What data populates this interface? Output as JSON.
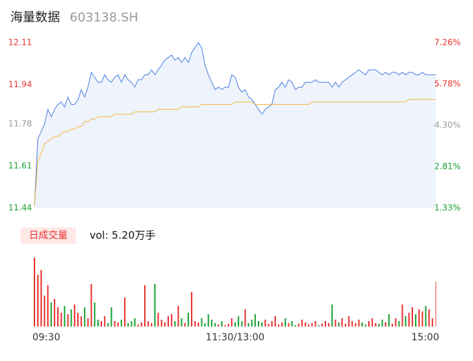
{
  "header": {
    "title": "海量数据",
    "code": "603138.SH"
  },
  "chart_data": [
    {
      "type": "line",
      "x": [
        0,
        2,
        4,
        6,
        8,
        10,
        12,
        14,
        16,
        18,
        20,
        22,
        24,
        26,
        28,
        30,
        32,
        34,
        36,
        38,
        40,
        42,
        44,
        46,
        48,
        50,
        52,
        54,
        56,
        58,
        60,
        62,
        64,
        66,
        68,
        70,
        72,
        74,
        76,
        78,
        80,
        82,
        84,
        86,
        88,
        90,
        92,
        94,
        96,
        98,
        100,
        102,
        104,
        106,
        108,
        110,
        112,
        114,
        116,
        118,
        120,
        122,
        124,
        126,
        128,
        130,
        132,
        134,
        136,
        138,
        140,
        142,
        144,
        146,
        148,
        150,
        152,
        154,
        156,
        158,
        160,
        162,
        164,
        166,
        168,
        170,
        172,
        174,
        176,
        178,
        180,
        182,
        184,
        186,
        188,
        190,
        192,
        194,
        196,
        198,
        200,
        202,
        204,
        206,
        208,
        210,
        212,
        214,
        216,
        218,
        220,
        222,
        224,
        226,
        228,
        230,
        232,
        234,
        236,
        238,
        240
      ],
      "series": [
        {
          "color": "#4a7fe0",
          "values": [
            11.45,
            11.72,
            11.75,
            11.78,
            11.84,
            11.81,
            11.84,
            11.86,
            11.87,
            11.85,
            11.89,
            11.86,
            11.86,
            11.88,
            11.92,
            11.89,
            11.93,
            11.99,
            11.97,
            11.95,
            11.95,
            11.98,
            11.96,
            11.95,
            11.97,
            11.98,
            11.95,
            11.98,
            11.96,
            11.95,
            11.93,
            11.96,
            11.96,
            11.98,
            11.98,
            12.0,
            11.98,
            12.0,
            12.02,
            12.04,
            12.05,
            12.06,
            12.04,
            12.05,
            12.03,
            12.05,
            12.03,
            12.07,
            12.09,
            12.11,
            12.09,
            12.02,
            11.98,
            11.95,
            11.92,
            11.93,
            11.92,
            11.93,
            11.93,
            11.98,
            11.97,
            11.93,
            11.91,
            11.92,
            11.89,
            11.88,
            11.86,
            11.84,
            11.82,
            11.84,
            11.85,
            11.86,
            11.92,
            11.93,
            11.95,
            11.93,
            11.96,
            11.95,
            11.92,
            11.93,
            11.93,
            11.95,
            11.95,
            11.95,
            11.96,
            11.95,
            11.95,
            11.95,
            11.95,
            11.93,
            11.95,
            11.93,
            11.95,
            11.96,
            11.97,
            11.98,
            11.99,
            12.0,
            11.99,
            11.98,
            12.0,
            12.0,
            12.0,
            11.99,
            11.98,
            11.99,
            11.98,
            11.99,
            11.99,
            11.98,
            11.99,
            11.98,
            11.99,
            11.99,
            11.98,
            11.98,
            11.99,
            11.98,
            11.98,
            11.98,
            11.98
          ]
        },
        {
          "color": "#f5b83d",
          "values": [
            11.45,
            11.63,
            11.66,
            11.7,
            11.71,
            11.72,
            11.73,
            11.73,
            11.74,
            11.75,
            11.75,
            11.76,
            11.76,
            11.77,
            11.77,
            11.79,
            11.79,
            11.8,
            11.8,
            11.81,
            11.81,
            11.81,
            11.81,
            11.81,
            11.82,
            11.82,
            11.82,
            11.82,
            11.82,
            11.82,
            11.83,
            11.83,
            11.83,
            11.83,
            11.83,
            11.83,
            11.83,
            11.84,
            11.84,
            11.84,
            11.84,
            11.84,
            11.84,
            11.84,
            11.85,
            11.85,
            11.85,
            11.85,
            11.85,
            11.85,
            11.86,
            11.86,
            11.86,
            11.86,
            11.86,
            11.86,
            11.86,
            11.86,
            11.86,
            11.86,
            11.87,
            11.87,
            11.87,
            11.87,
            11.87,
            11.87,
            11.86,
            11.86,
            11.86,
            11.86,
            11.86,
            11.86,
            11.86,
            11.86,
            11.86,
            11.86,
            11.86,
            11.86,
            11.86,
            11.86,
            11.86,
            11.86,
            11.86,
            11.87,
            11.87,
            11.87,
            11.87,
            11.87,
            11.87,
            11.87,
            11.87,
            11.87,
            11.87,
            11.87,
            11.87,
            11.87,
            11.87,
            11.87,
            11.87,
            11.87,
            11.87,
            11.87,
            11.87,
            11.87,
            11.87,
            11.87,
            11.87,
            11.87,
            11.87,
            11.87,
            11.87,
            11.87,
            11.88,
            11.88,
            11.88,
            11.88,
            11.88,
            11.88,
            11.88,
            11.88,
            11.88
          ]
        }
      ],
      "fill": "#eef3fc",
      "xlim": [
        0,
        240
      ],
      "xticks": [
        {
          "value": 0,
          "label": "09:30"
        },
        {
          "value": 120,
          "label": "11:30/13:00"
        },
        {
          "value": 240,
          "label": "15:00"
        }
      ],
      "ylim": [
        11.44,
        12.11
      ],
      "yticks": [
        12.11,
        11.94,
        11.78,
        11.61,
        11.44
      ],
      "ytick_colors": [
        "#e8312f",
        "#e8312f",
        "#999999",
        "#1aa033",
        "#1aa033"
      ],
      "y2lim": [
        1.33,
        7.26
      ],
      "y2ticks": [
        {
          "value": 7.26,
          "label": "7.26%"
        },
        {
          "value": 5.78,
          "label": "5.78%"
        },
        {
          "value": 4.3,
          "label": "4.30%"
        },
        {
          "value": 2.81,
          "label": "2.81%"
        },
        {
          "value": 1.33,
          "label": "1.33%"
        }
      ]
    },
    {
      "type": "bar",
      "legend_label": "日成交量",
      "annotation": "vol: 5.20万手",
      "x": [
        0,
        2,
        4,
        6,
        8,
        10,
        12,
        14,
        16,
        18,
        20,
        22,
        24,
        26,
        28,
        30,
        32,
        34,
        36,
        38,
        40,
        42,
        44,
        46,
        48,
        50,
        52,
        54,
        56,
        58,
        60,
        62,
        64,
        66,
        68,
        70,
        72,
        74,
        76,
        78,
        80,
        82,
        84,
        86,
        88,
        90,
        92,
        94,
        96,
        98,
        100,
        102,
        104,
        106,
        108,
        110,
        112,
        114,
        116,
        118,
        120,
        122,
        124,
        126,
        128,
        130,
        132,
        134,
        136,
        138,
        140,
        142,
        144,
        146,
        148,
        150,
        152,
        154,
        156,
        158,
        160,
        162,
        164,
        166,
        168,
        170,
        172,
        174,
        176,
        178,
        180,
        182,
        184,
        186,
        188,
        190,
        192,
        194,
        196,
        198,
        200,
        202,
        204,
        206,
        208,
        210,
        212,
        214,
        216,
        218,
        220,
        222,
        224,
        226,
        228,
        230,
        232,
        234,
        236,
        238,
        240
      ],
      "values": [
        100,
        75,
        82,
        45,
        60,
        35,
        40,
        28,
        20,
        30,
        18,
        25,
        32,
        20,
        15,
        28,
        12,
        62,
        35,
        10,
        8,
        15,
        5,
        28,
        8,
        6,
        10,
        42,
        5,
        8,
        12,
        3,
        6,
        60,
        8,
        5,
        62,
        20,
        10,
        6,
        15,
        18,
        8,
        30,
        12,
        5,
        20,
        50,
        8,
        6,
        12,
        5,
        18,
        10,
        5,
        3,
        8,
        2,
        4,
        12,
        6,
        15,
        8,
        25,
        5,
        10,
        18,
        8,
        6,
        10,
        4,
        8,
        15,
        3,
        6,
        12,
        5,
        8,
        2,
        4,
        10,
        6,
        3,
        5,
        8,
        2,
        4,
        8,
        5,
        32,
        10,
        6,
        12,
        4,
        15,
        8,
        5,
        10,
        6,
        3,
        8,
        12,
        5,
        4,
        10,
        6,
        18,
        4,
        12,
        8,
        32,
        15,
        20,
        28,
        18,
        25,
        22,
        30,
        25,
        12,
        65
      ],
      "up_color": "#e8312f",
      "down_color": "#1aa033",
      "xlim": [
        0,
        240
      ],
      "ylim": [
        0,
        100
      ]
    }
  ]
}
